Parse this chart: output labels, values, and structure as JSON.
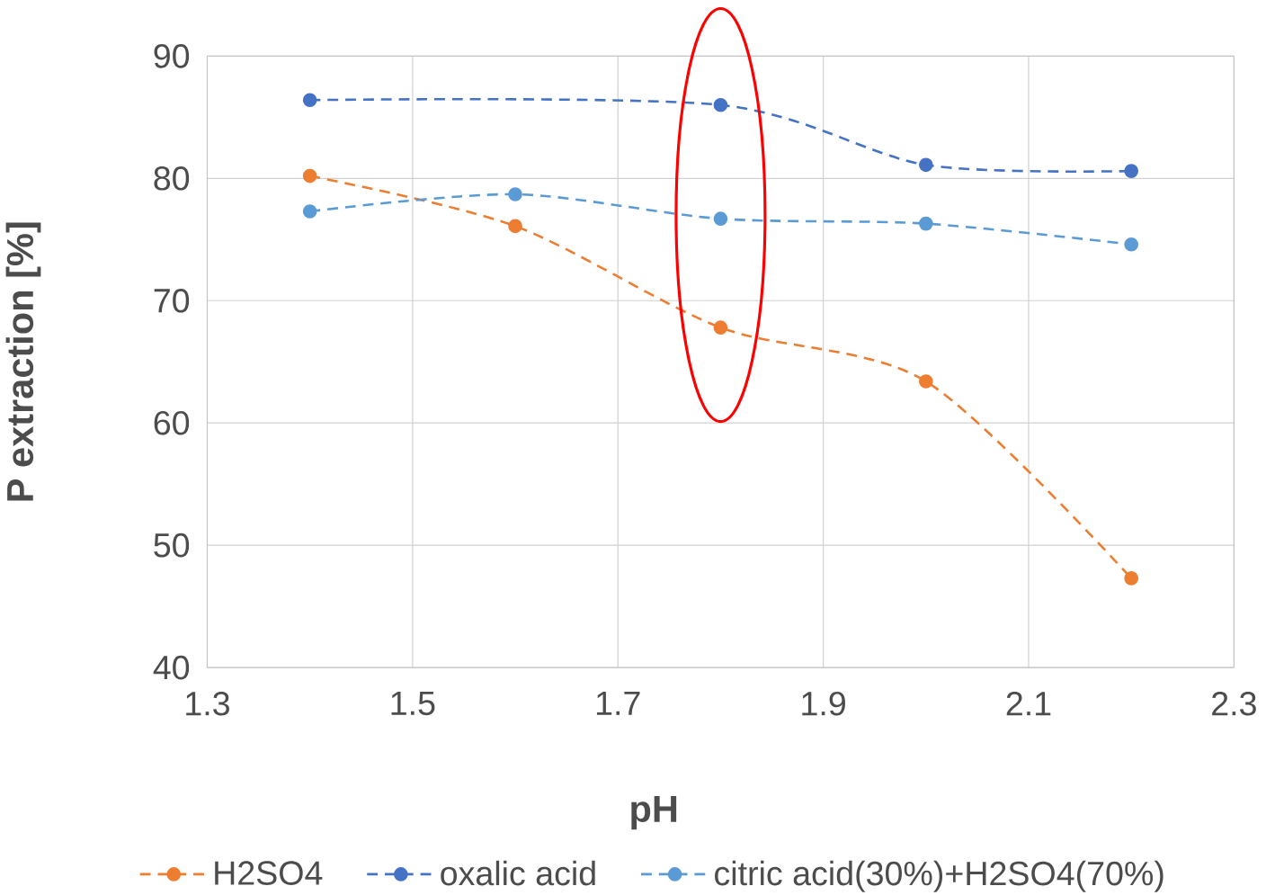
{
  "chart_data": {
    "type": "line",
    "xlabel": "pH",
    "ylabel": "P extraction [%]",
    "xlim": [
      1.3,
      2.3
    ],
    "xticks": [
      1.3,
      1.5,
      1.7,
      1.9,
      2.1,
      2.3
    ],
    "ylim": [
      40,
      90
    ],
    "yticks": [
      40,
      50,
      60,
      70,
      80,
      90
    ],
    "grid": true,
    "legend": "bottom",
    "marker": "circle",
    "line_style": "dashed",
    "series": [
      {
        "name": "H2SO4",
        "color": "#ed7d31",
        "x": [
          1.4,
          1.6,
          1.8,
          2.0,
          2.2
        ],
        "values": [
          80.2,
          76.1,
          67.8,
          63.4,
          47.3
        ]
      },
      {
        "name": "oxalic acid",
        "color": "#4472c4",
        "x": [
          1.4,
          1.8,
          2.0,
          2.2
        ],
        "values": [
          86.4,
          86.0,
          81.1,
          80.6
        ]
      },
      {
        "name": "citric acid(30%)+H2SO4(70%)",
        "color": "#5b9bd5",
        "x": [
          1.4,
          1.6,
          1.8,
          2.0,
          2.2
        ],
        "values": [
          77.3,
          78.7,
          76.7,
          76.3,
          74.6
        ]
      }
    ]
  }
}
